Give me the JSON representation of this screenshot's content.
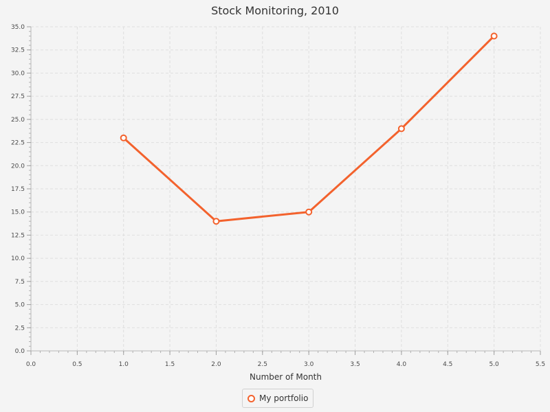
{
  "chart_data": {
    "type": "line",
    "title": "Stock Monitoring, 2010",
    "xlabel": "Number of Month",
    "ylabel": "",
    "xlim": [
      0.0,
      5.5
    ],
    "ylim": [
      0.0,
      35.0
    ],
    "x_major_step": 0.5,
    "y_major_step": 2.5,
    "grid": true,
    "legend_position": "bottom",
    "series": [
      {
        "name": "My portfolio",
        "color": "#f3622d",
        "x": [
          1.0,
          2.0,
          3.0,
          4.0,
          5.0
        ],
        "y": [
          23,
          14,
          15,
          24,
          34
        ]
      }
    ]
  }
}
